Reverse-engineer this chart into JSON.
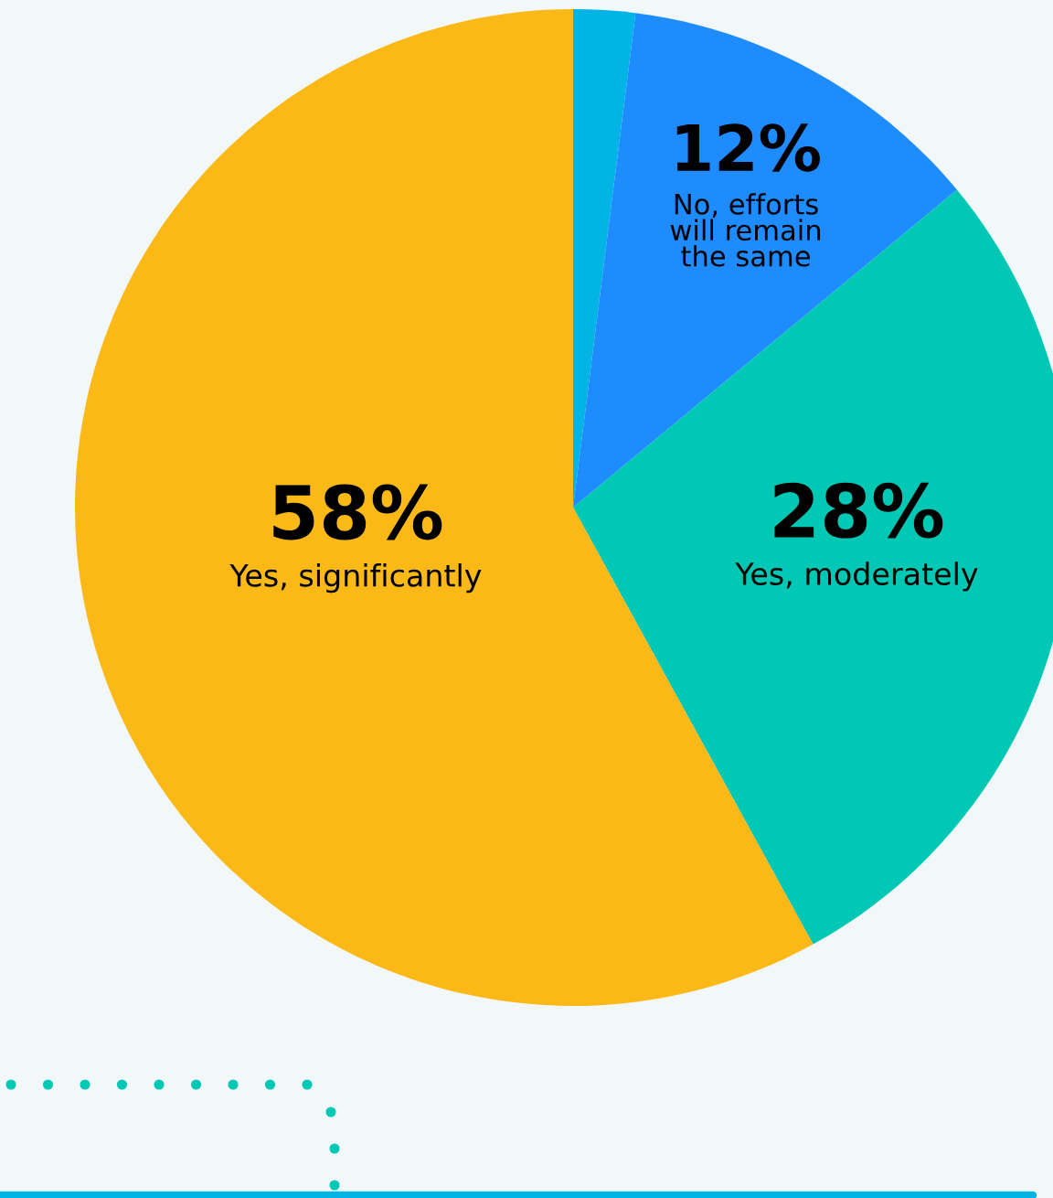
{
  "chart_data": {
    "type": "pie",
    "categories": [
      null,
      "No, efforts\nwill remain\nthe same",
      "Yes, moderately",
      "Yes, significantly"
    ],
    "values": [
      2,
      12,
      28,
      58
    ],
    "value_labels": [
      null,
      "12%",
      "28%",
      "58%"
    ],
    "colors": [
      "#00b4e6",
      "#1e8cff",
      "#00c8b4",
      "#fbb917"
    ]
  }
}
